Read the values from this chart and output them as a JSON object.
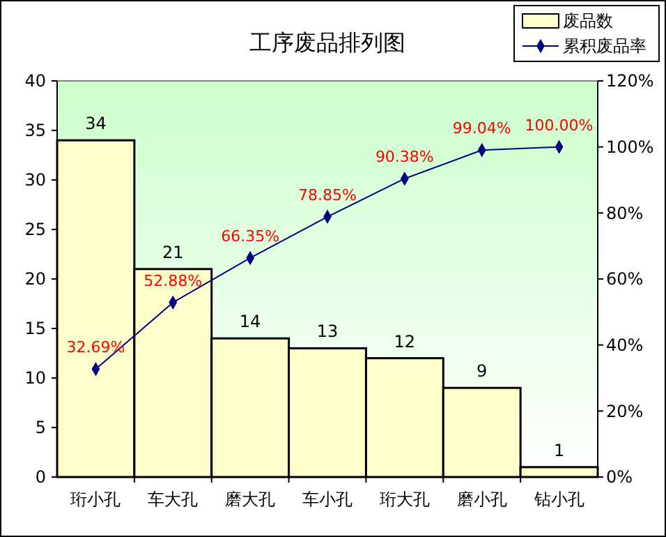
{
  "chart_data": {
    "type": "bar",
    "title": "工序废品排列图",
    "categories": [
      "珩小孔",
      "车大孔",
      "磨大孔",
      "车小孔",
      "珩大孔",
      "磨小孔",
      "钻小孔"
    ],
    "series": [
      {
        "name": "废品数",
        "color": "#ffffcc",
        "values": [
          34,
          21,
          14,
          13,
          12,
          9,
          1
        ]
      },
      {
        "name": "累积废品率",
        "type": "line",
        "axis": "y2",
        "color": "#000080",
        "values": [
          32.69,
          52.88,
          66.35,
          78.85,
          90.38,
          99.04,
          100.0
        ],
        "value_labels": [
          "32.69%",
          "52.88%",
          "66.35%",
          "78.85%",
          "90.38%",
          "99.04%",
          "100.00%"
        ]
      }
    ],
    "data_labels": true,
    "ylim": [
      0,
      40
    ],
    "yticks": [
      0,
      5,
      10,
      15,
      20,
      25,
      30,
      35,
      40
    ],
    "y2lim": [
      0,
      120
    ],
    "y2ticks": [
      {
        "value": 0,
        "label": "0%"
      },
      {
        "value": 20,
        "label": "20%"
      },
      {
        "value": 40,
        "label": "40%"
      },
      {
        "value": 60,
        "label": "60%"
      },
      {
        "value": 80,
        "label": "80%"
      },
      {
        "value": 100,
        "label": "100%"
      },
      {
        "value": 120,
        "label": "120%"
      }
    ],
    "grid": false,
    "legend": "top right",
    "marker": "diamond",
    "line_style": "solid"
  }
}
